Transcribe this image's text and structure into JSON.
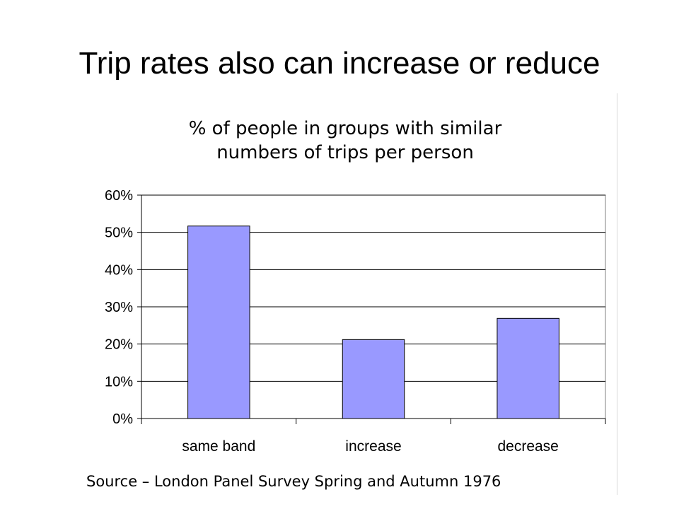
{
  "slide": {
    "title": "Trip rates also can increase or reduce",
    "source": "Source – London Panel Survey Spring and Autumn 1976"
  },
  "chart_data": {
    "type": "bar",
    "title_lines": [
      "% of people in groups with similar",
      "numbers of trips per person"
    ],
    "categories": [
      "same band",
      "increase",
      "decrease"
    ],
    "values": [
      51.7,
      21.2,
      26.9
    ],
    "value_unit": "%",
    "ylim": [
      0,
      60
    ],
    "yticks": [
      0,
      10,
      20,
      30,
      40,
      50,
      60
    ],
    "ytick_labels": [
      "0%",
      "10%",
      "20%",
      "30%",
      "40%",
      "50%",
      "60%"
    ],
    "xlabel": "",
    "ylabel": "",
    "grid": true,
    "legend": "none",
    "bar_color": "#9999ff",
    "bar_edge_color": "#000000",
    "gridline_color": "#000000"
  }
}
